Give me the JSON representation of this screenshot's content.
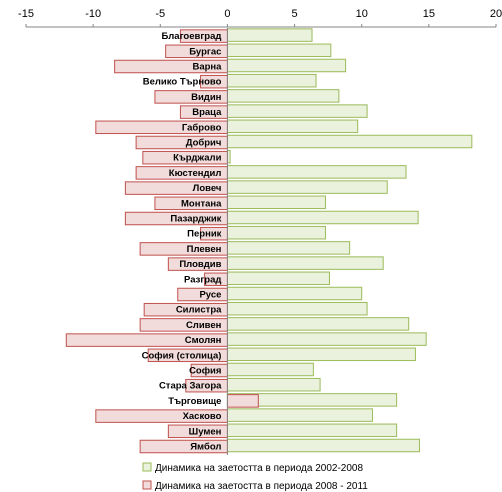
{
  "chart_data": {
    "type": "bar",
    "orientation": "horizontal",
    "xlim": [
      -15,
      20
    ],
    "xticks": [
      -15,
      -10,
      -5,
      0,
      5,
      10,
      15,
      20
    ],
    "grid": false,
    "legend_position": "bottom",
    "categories": [
      "Благоевград",
      "Бургас",
      "Варна",
      "Велико Търново",
      "Видин",
      "Враца",
      "Габрово",
      "Добрич",
      "Кърджали",
      "Кюстендил",
      "Ловеч",
      "Монтана",
      "Пазарджик",
      "Перник",
      "Плевен",
      "Пловдив",
      "Разград",
      "Русе",
      "Силистра",
      "Сливен",
      "Смолян",
      "София (столица)",
      "София",
      "Стара Загора",
      "Търговище",
      "Хасково",
      "Шумен",
      "Ямбол"
    ],
    "series": [
      {
        "name": "Динамика на заетостта в периода 2002-2008",
        "color": "#eaf1dd",
        "border": "#9bbb59",
        "values": [
          6.3,
          7.7,
          8.8,
          6.6,
          8.3,
          10.4,
          9.7,
          18.2,
          0.2,
          13.3,
          11.9,
          7.3,
          14.2,
          7.3,
          9.1,
          11.6,
          7.6,
          10.0,
          10.4,
          13.5,
          14.8,
          14.0,
          6.4,
          6.9,
          12.6,
          10.8,
          12.6,
          14.3
        ]
      },
      {
        "name": "Динамика на заетостта в периода 2008 - 2011",
        "color": "#f2dcdb",
        "border": "#c0504d",
        "values": [
          -3.5,
          -4.6,
          -8.4,
          -2.0,
          -5.4,
          -3.5,
          -9.8,
          -6.8,
          -6.3,
          -6.8,
          -7.6,
          -5.4,
          -7.6,
          -2.0,
          -6.5,
          -4.4,
          -1.7,
          -3.7,
          -6.2,
          -6.5,
          -12.0,
          -5.9,
          -2.7,
          -3.1,
          2.3,
          -9.8,
          -4.4,
          -6.5
        ]
      }
    ]
  }
}
